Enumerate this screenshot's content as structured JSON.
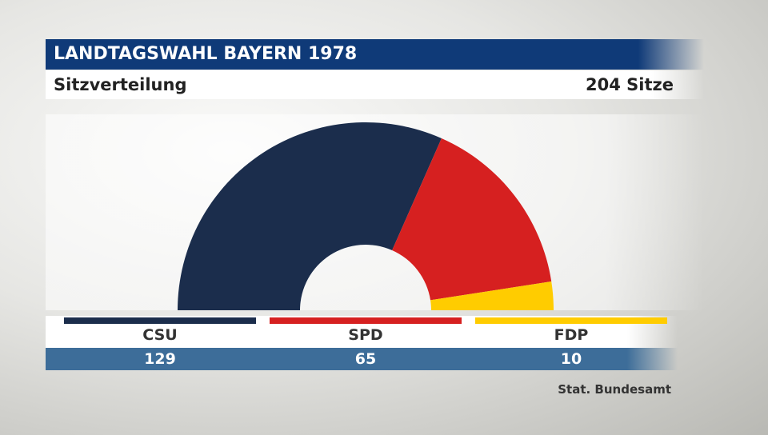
{
  "header": {
    "title": "LANDTAGSWAHL BAYERN 1978",
    "subtitle": "Sitzverteilung",
    "total_label": "204 Sitze"
  },
  "chart_data": {
    "type": "pie",
    "variant": "semicircle",
    "title": "LANDTAGSWAHL BAYERN 1978",
    "subtitle": "Sitzverteilung",
    "total_label": "204 Sitze",
    "categories": [
      "CSU",
      "SPD",
      "FDP"
    ],
    "values": [
      129,
      65,
      10
    ],
    "value_labels": [
      "129",
      "65",
      "10"
    ],
    "colors": [
      "#1b2d4c",
      "#d62020",
      "#ffcc00"
    ]
  },
  "source": "Stat. Bundesamt"
}
